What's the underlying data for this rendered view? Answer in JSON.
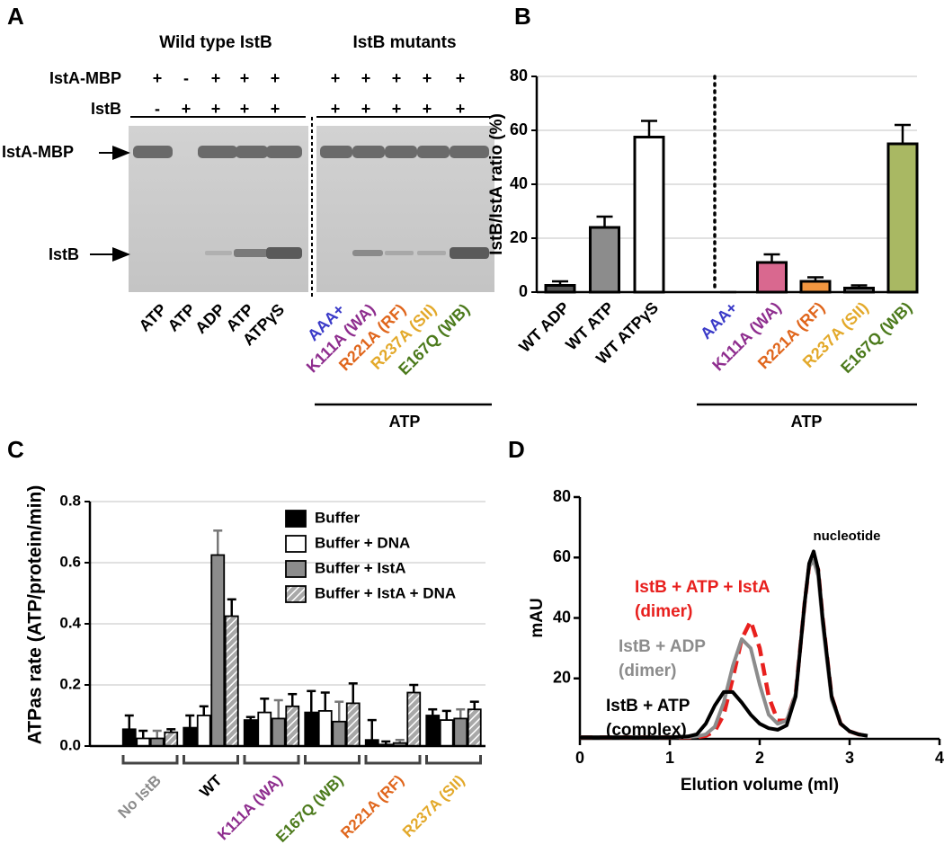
{
  "panel_labels": [
    "A",
    "B",
    "C",
    "D"
  ],
  "gel": {
    "groups": [
      "Wild type IstB",
      "IstB mutants"
    ],
    "rows": [
      {
        "label": "IstA-MBP",
        "signs": [
          "+",
          "-",
          "+",
          "+",
          "+",
          "+",
          "+",
          "+",
          "+",
          "+"
        ]
      },
      {
        "label": "IstB",
        "signs": [
          "-",
          "+",
          "+",
          "+",
          "+",
          "+",
          "+",
          "+",
          "+",
          "+"
        ]
      }
    ],
    "bands": [
      "IstA-MBP",
      "IstB"
    ],
    "lanes": [
      "ATP",
      "ATP",
      "ADP",
      "ATP",
      "ATPγS",
      "AAA+",
      "K111A (WA)",
      "R221A (RF)",
      "R237A (SII)",
      "E167Q (WB)"
    ],
    "lane_colors": [
      "#000000",
      "#000000",
      "#000000",
      "#000000",
      "#000000",
      "#3a3ac8",
      "#8e2d8e",
      "#e0661c",
      "#e3a92a",
      "#4c7a1c"
    ],
    "group_label": "ATP"
  },
  "chart_data": [
    {
      "type": "bar",
      "ylabel": "IstB/IstA ratio (%)",
      "categories": [
        "WT ADP",
        "WT ATP",
        "WT ATPγS",
        "AAA+",
        "K111A (WA)",
        "R221A (RF)",
        "R237A (SII)",
        "E167Q (WB)"
      ],
      "category_colors": [
        "#000000",
        "#000000",
        "#000000",
        "#3a3ac8",
        "#8e2d8e",
        "#e0661c",
        "#e3a92a",
        "#4c7a1c"
      ],
      "values": [
        2.5,
        24,
        57.5,
        0,
        11,
        4,
        1.5,
        55
      ],
      "errors": [
        1.5,
        4,
        6,
        0,
        3,
        1.5,
        1,
        7
      ],
      "colors": [
        "#555555",
        "#8c8c8c",
        "#ffffff",
        "#3a3ac8",
        "#d9688f",
        "#f29640",
        "#888888",
        "#a9b863"
      ],
      "ylim": [
        0,
        80
      ],
      "yticks": [
        0,
        20,
        40,
        60,
        80
      ],
      "grid": true,
      "group_label": "ATP"
    },
    {
      "type": "grouped_bar",
      "ylabel": "ATPas rate (ATP/protein/min)",
      "categories": [
        "No IstB",
        "WT",
        "K111A (WA)",
        "E167Q (WB)",
        "R221A (RF)",
        "R237A (SII)"
      ],
      "category_colors": [
        "#8c8c8c",
        "#000000",
        "#8e2d8e",
        "#4c7a1c",
        "#e0661c",
        "#e3a92a"
      ],
      "series": [
        {
          "name": "Buffer",
          "color": "#000000",
          "values": [
            0.055,
            0.06,
            0.085,
            0.11,
            0.02,
            0.1
          ],
          "errors": [
            0.045,
            0.04,
            0.01,
            0.07,
            0.065,
            0.02
          ]
        },
        {
          "name": "Buffer + DNA",
          "color": "#ffffff",
          "values": [
            0.025,
            0.1,
            0.11,
            0.115,
            0.005,
            0.085
          ],
          "errors": [
            0.025,
            0.03,
            0.045,
            0.06,
            0.01,
            0.03
          ]
        },
        {
          "name": "Buffer + IstA",
          "color": "#8c8c8c",
          "values": [
            0.025,
            0.625,
            0.09,
            0.08,
            0.01,
            0.09
          ],
          "errors": [
            0.025,
            0.08,
            0.06,
            0.065,
            0.01,
            0.03
          ]
        },
        {
          "name": "Buffer + IstA + DNA",
          "color": "#b0b0b0",
          "pattern": "hatch",
          "values": [
            0.045,
            0.425,
            0.13,
            0.14,
            0.175,
            0.12
          ],
          "errors": [
            0.01,
            0.055,
            0.04,
            0.065,
            0.025,
            0.025
          ]
        }
      ],
      "ylim": [
        0,
        0.8
      ],
      "yticks": [
        {
          "value": 0,
          "label": "0.0"
        },
        0.2,
        0.4,
        0.6,
        0.8
      ],
      "grid": true,
      "legend": "upper right"
    },
    {
      "type": "line",
      "xlabel": "Elution volume (ml)",
      "ylabel": "mAU",
      "annotations": [
        "nucleotide"
      ],
      "x": [
        0,
        0.5,
        1.0,
        1.2,
        1.3,
        1.4,
        1.5,
        1.6,
        1.7,
        1.8,
        1.9,
        2.0,
        2.1,
        2.2,
        2.3,
        2.4,
        2.5,
        2.55,
        2.6,
        2.65,
        2.7,
        2.8,
        2.9,
        3.0,
        3.1,
        3.2
      ],
      "series": [
        {
          "name": "IstB + ATP + IstA\n(dimer)",
          "color": "#e8201e",
          "dash": true,
          "values": [
            0.5,
            0.5,
            0.5,
            0.5,
            0.6,
            1,
            2.5,
            8,
            20,
            33,
            39,
            30,
            14,
            6,
            6,
            15,
            45,
            57,
            60,
            56,
            40,
            14,
            5,
            2.5,
            1.5,
            1
          ]
        },
        {
          "name": "IstB + ADP\n(dimer)",
          "color": "#8c8c8c",
          "values": [
            0.5,
            0.5,
            0.5,
            0.6,
            0.8,
            1.5,
            4,
            12,
            24,
            33,
            30,
            18,
            8,
            5,
            6,
            15,
            45,
            57,
            59,
            54,
            38,
            13,
            5,
            2.5,
            1.5,
            1
          ]
        },
        {
          "name": "IstB + ATP\n(complex)",
          "color": "#000000",
          "values": [
            0.5,
            0.5,
            0.5,
            0.8,
            1.5,
            5,
            11,
            15.5,
            15.5,
            12,
            8,
            5,
            3.5,
            3,
            4.5,
            14,
            45,
            58,
            62,
            56,
            40,
            14,
            5,
            2.5,
            1.5,
            1
          ]
        }
      ],
      "xlim": [
        0,
        4
      ],
      "ylim": [
        0,
        80
      ],
      "xticks": [
        0,
        1,
        2,
        3,
        4
      ],
      "yticks": [
        20,
        40,
        60,
        80
      ]
    }
  ]
}
